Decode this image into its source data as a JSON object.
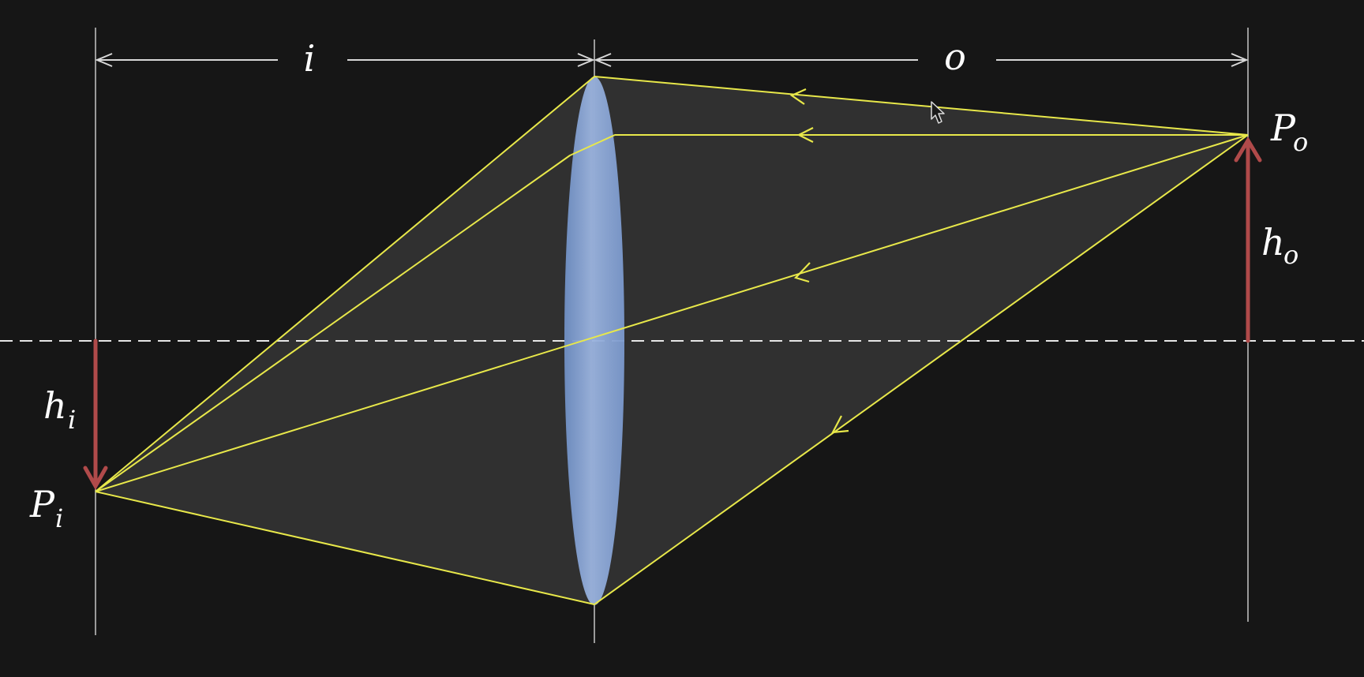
{
  "labels": {
    "image_distance": "i",
    "object_distance": "o",
    "object_point": {
      "main": "P",
      "sub": "o"
    },
    "object_height": {
      "main": "h",
      "sub": "o"
    },
    "image_height": {
      "main": "h",
      "sub": "i"
    },
    "image_point": {
      "main": "P",
      "sub": "i"
    }
  },
  "colors": {
    "background": "#161616",
    "ray": "#e8e84a",
    "lens": "#8aa6d6",
    "height_arrow": "#b04a4a",
    "guide": "#cfcfcf",
    "cone_fill": "#3a3a3a",
    "text": "#ffffff"
  },
  "icons": {
    "cursor": "mouse-pointer-icon"
  }
}
